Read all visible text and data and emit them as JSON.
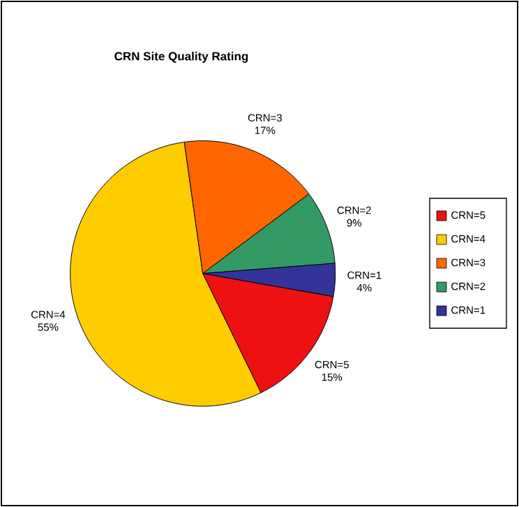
{
  "chart_data": {
    "type": "pie",
    "title": "CRN Site Quality Rating",
    "categories": [
      "CRN=5",
      "CRN=4",
      "CRN=3",
      "CRN=2",
      "CRN=1"
    ],
    "values": [
      15,
      55,
      17,
      9,
      4
    ],
    "value_labels": [
      "15%",
      "55%",
      "17%",
      "9%",
      "4%"
    ],
    "colors": [
      "#ee1111",
      "#ffcc00",
      "#ff6600",
      "#339966",
      "#333399"
    ],
    "legend": "right"
  }
}
